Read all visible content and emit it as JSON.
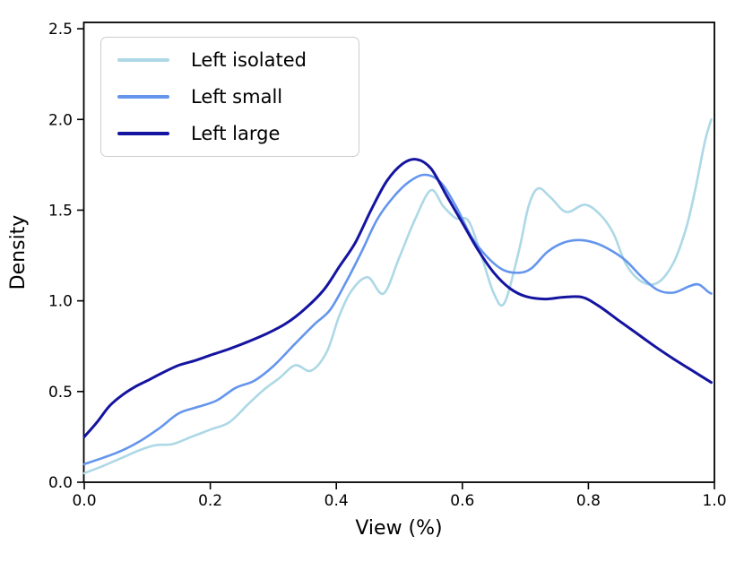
{
  "figure": {
    "background": "#ffffff"
  },
  "chart_data": {
    "type": "line",
    "title": "",
    "xlabel": "View (%)",
    "ylabel": "Density",
    "xlim": [
      0.0,
      1.0
    ],
    "ylim": [
      0.0,
      2.535
    ],
    "xticks": [
      "0.0",
      "0.2",
      "0.4",
      "0.6",
      "0.8",
      "1.0"
    ],
    "yticks": [
      "0.0",
      "0.5",
      "1.0",
      "1.5",
      "2.0",
      "2.5"
    ],
    "grid": false,
    "legend_position": "upper left",
    "series": [
      {
        "name": "Left isolated",
        "color": "#ADD8E6",
        "width": 2.6,
        "points": [
          [
            0.0,
            0.05
          ],
          [
            0.03,
            0.09
          ],
          [
            0.06,
            0.135
          ],
          [
            0.09,
            0.18
          ],
          [
            0.115,
            0.205
          ],
          [
            0.14,
            0.21
          ],
          [
            0.17,
            0.25
          ],
          [
            0.2,
            0.29
          ],
          [
            0.23,
            0.33
          ],
          [
            0.26,
            0.43
          ],
          [
            0.285,
            0.51
          ],
          [
            0.31,
            0.575
          ],
          [
            0.335,
            0.645
          ],
          [
            0.36,
            0.615
          ],
          [
            0.385,
            0.72
          ],
          [
            0.405,
            0.92
          ],
          [
            0.425,
            1.06
          ],
          [
            0.45,
            1.13
          ],
          [
            0.475,
            1.04
          ],
          [
            0.5,
            1.24
          ],
          [
            0.525,
            1.45
          ],
          [
            0.55,
            1.61
          ],
          [
            0.57,
            1.52
          ],
          [
            0.59,
            1.455
          ],
          [
            0.61,
            1.44
          ],
          [
            0.63,
            1.25
          ],
          [
            0.65,
            1.04
          ],
          [
            0.667,
            0.99
          ],
          [
            0.69,
            1.28
          ],
          [
            0.705,
            1.52
          ],
          [
            0.72,
            1.62
          ],
          [
            0.74,
            1.57
          ],
          [
            0.765,
            1.49
          ],
          [
            0.795,
            1.53
          ],
          [
            0.82,
            1.47
          ],
          [
            0.84,
            1.37
          ],
          [
            0.86,
            1.2
          ],
          [
            0.885,
            1.105
          ],
          [
            0.91,
            1.1
          ],
          [
            0.935,
            1.21
          ],
          [
            0.955,
            1.4
          ],
          [
            0.97,
            1.62
          ],
          [
            0.985,
            1.88
          ],
          [
            0.995,
            2.0
          ]
        ]
      },
      {
        "name": "Left small",
        "color": "#6495ED",
        "width": 2.6,
        "points": [
          [
            0.0,
            0.1
          ],
          [
            0.03,
            0.135
          ],
          [
            0.06,
            0.175
          ],
          [
            0.09,
            0.23
          ],
          [
            0.12,
            0.3
          ],
          [
            0.15,
            0.38
          ],
          [
            0.18,
            0.415
          ],
          [
            0.21,
            0.45
          ],
          [
            0.24,
            0.52
          ],
          [
            0.27,
            0.56
          ],
          [
            0.3,
            0.64
          ],
          [
            0.335,
            0.765
          ],
          [
            0.365,
            0.87
          ],
          [
            0.39,
            0.95
          ],
          [
            0.415,
            1.1
          ],
          [
            0.44,
            1.27
          ],
          [
            0.465,
            1.45
          ],
          [
            0.49,
            1.57
          ],
          [
            0.515,
            1.655
          ],
          [
            0.54,
            1.695
          ],
          [
            0.565,
            1.655
          ],
          [
            0.59,
            1.52
          ],
          [
            0.615,
            1.35
          ],
          [
            0.64,
            1.24
          ],
          [
            0.665,
            1.17
          ],
          [
            0.69,
            1.155
          ],
          [
            0.71,
            1.18
          ],
          [
            0.735,
            1.27
          ],
          [
            0.76,
            1.32
          ],
          [
            0.785,
            1.335
          ],
          [
            0.81,
            1.32
          ],
          [
            0.835,
            1.28
          ],
          [
            0.86,
            1.22
          ],
          [
            0.885,
            1.13
          ],
          [
            0.91,
            1.06
          ],
          [
            0.935,
            1.045
          ],
          [
            0.96,
            1.08
          ],
          [
            0.975,
            1.09
          ],
          [
            0.99,
            1.05
          ],
          [
            0.995,
            1.04
          ]
        ]
      },
      {
        "name": "Left large",
        "color": "#1414A0",
        "width": 3.0,
        "points": [
          [
            0.0,
            0.25
          ],
          [
            0.02,
            0.33
          ],
          [
            0.04,
            0.42
          ],
          [
            0.06,
            0.48
          ],
          [
            0.08,
            0.525
          ],
          [
            0.1,
            0.56
          ],
          [
            0.125,
            0.605
          ],
          [
            0.15,
            0.645
          ],
          [
            0.175,
            0.67
          ],
          [
            0.2,
            0.7
          ],
          [
            0.23,
            0.735
          ],
          [
            0.26,
            0.775
          ],
          [
            0.29,
            0.82
          ],
          [
            0.32,
            0.875
          ],
          [
            0.35,
            0.955
          ],
          [
            0.38,
            1.06
          ],
          [
            0.405,
            1.19
          ],
          [
            0.43,
            1.32
          ],
          [
            0.455,
            1.5
          ],
          [
            0.48,
            1.66
          ],
          [
            0.505,
            1.755
          ],
          [
            0.527,
            1.78
          ],
          [
            0.55,
            1.73
          ],
          [
            0.575,
            1.58
          ],
          [
            0.6,
            1.43
          ],
          [
            0.625,
            1.28
          ],
          [
            0.65,
            1.155
          ],
          [
            0.675,
            1.07
          ],
          [
            0.7,
            1.025
          ],
          [
            0.73,
            1.01
          ],
          [
            0.76,
            1.02
          ],
          [
            0.79,
            1.02
          ],
          [
            0.815,
            0.975
          ],
          [
            0.845,
            0.9
          ],
          [
            0.875,
            0.825
          ],
          [
            0.905,
            0.75
          ],
          [
            0.935,
            0.68
          ],
          [
            0.965,
            0.615
          ],
          [
            0.995,
            0.55
          ]
        ]
      }
    ]
  }
}
